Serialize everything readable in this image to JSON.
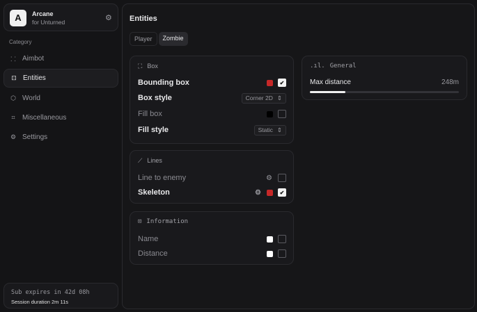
{
  "app": {
    "logo_letter": "A",
    "name": "Arcane",
    "subtitle": "for Unturned"
  },
  "sidebar": {
    "category_label": "Category",
    "items": [
      {
        "label": "Aimbot",
        "icon": "crosshair-icon",
        "glyph": "⸬"
      },
      {
        "label": "Entities",
        "icon": "scan-face-icon",
        "glyph": "⊡"
      },
      {
        "label": "World",
        "icon": "globe-icon",
        "glyph": "⬡"
      },
      {
        "label": "Miscellaneous",
        "icon": "grid-icon",
        "glyph": "⌗"
      },
      {
        "label": "Settings",
        "icon": "gear-icon",
        "glyph": "⚙"
      }
    ],
    "active": "Entities",
    "footer": {
      "sub": "Sub expires in 42d 08h",
      "session": "Session duration 2m 11s"
    }
  },
  "main": {
    "title": "Entities",
    "tabs": [
      {
        "label": "Player"
      },
      {
        "label": "Zombie"
      }
    ],
    "active_tab": "Zombie",
    "box": {
      "title": "Box",
      "bounding_box": "Bounding box",
      "box_style": "Box style",
      "box_style_value": "Corner 2D",
      "fill_box": "Fill box",
      "fill_style": "Fill style",
      "fill_style_value": "Static"
    },
    "lines": {
      "title": "Lines",
      "line_to_enemy": "Line to enemy",
      "skeleton": "Skeleton"
    },
    "information": {
      "title": "Information",
      "name": "Name",
      "distance": "Distance"
    },
    "general": {
      "title": "General",
      "max_distance": "Max distance",
      "max_distance_value": "248m",
      "slider_fraction": 0.24
    }
  },
  "colors": {
    "red": "#c62828",
    "white": "#ffffff",
    "black": "#000000"
  }
}
